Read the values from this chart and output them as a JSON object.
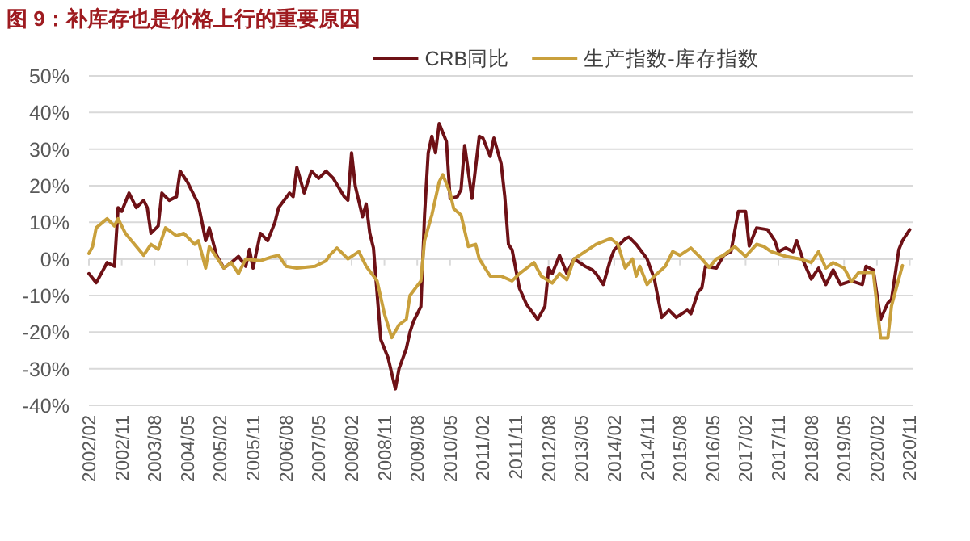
{
  "chart_data": {
    "type": "line",
    "title": "图 9：补库存也是价格上行的重要原因",
    "ylim": [
      -40,
      50
    ],
    "yticks": [
      {
        "value": -40,
        "label": "-40%"
      },
      {
        "value": -30,
        "label": "-30%"
      },
      {
        "value": -20,
        "label": "-20%"
      },
      {
        "value": -10,
        "label": "-10%"
      },
      {
        "value": 0,
        "label": "0%"
      },
      {
        "value": 10,
        "label": "10%"
      },
      {
        "value": 20,
        "label": "20%"
      },
      {
        "value": 30,
        "label": "30%"
      },
      {
        "value": 40,
        "label": "40%"
      },
      {
        "value": 50,
        "label": "50%"
      }
    ],
    "xlim": [
      "2002-02",
      "2020-12"
    ],
    "xticks": [
      {
        "value": "2002-02",
        "label": "2002/02"
      },
      {
        "value": "2002-11",
        "label": "2002/11"
      },
      {
        "value": "2003-08",
        "label": "2003/08"
      },
      {
        "value": "2004-05",
        "label": "2004/05"
      },
      {
        "value": "2005-02",
        "label": "2005/02"
      },
      {
        "value": "2005-11",
        "label": "2005/11"
      },
      {
        "value": "2006-08",
        "label": "2006/08"
      },
      {
        "value": "2007-05",
        "label": "2007/05"
      },
      {
        "value": "2008-02",
        "label": "2008/02"
      },
      {
        "value": "2008-11",
        "label": "2008/11"
      },
      {
        "value": "2009-08",
        "label": "2009/08"
      },
      {
        "value": "2010-05",
        "label": "2010/05"
      },
      {
        "value": "2011-02",
        "label": "2011/02"
      },
      {
        "value": "2011-11",
        "label": "2011/11"
      },
      {
        "value": "2012-08",
        "label": "2012/08"
      },
      {
        "value": "2013-05",
        "label": "2013/05"
      },
      {
        "value": "2014-02",
        "label": "2014/02"
      },
      {
        "value": "2014-11",
        "label": "2014/11"
      },
      {
        "value": "2015-08",
        "label": "2015/08"
      },
      {
        "value": "2016-05",
        "label": "2016/05"
      },
      {
        "value": "2017-02",
        "label": "2017/02"
      },
      {
        "value": "2017-11",
        "label": "2017/11"
      },
      {
        "value": "2018-08",
        "label": "2018/08"
      },
      {
        "value": "2019-05",
        "label": "2019/05"
      },
      {
        "value": "2020-02",
        "label": "2020/02"
      },
      {
        "value": "2020-11",
        "label": "2020/11"
      }
    ],
    "grid": "y",
    "legend": "top",
    "marker": "none",
    "line_style": "solid",
    "series": [
      {
        "name": "CRB同比",
        "color": "#6e1116",
        "x": [
          "2002-02",
          "2002-04",
          "2002-07",
          "2002-09",
          "2002-10",
          "2002-11",
          "2003-01",
          "2003-03",
          "2003-05",
          "2003-06",
          "2003-07",
          "2003-09",
          "2003-10",
          "2003-12",
          "2004-02",
          "2004-03",
          "2004-05",
          "2004-07",
          "2004-08",
          "2004-10",
          "2004-11",
          "2005-01",
          "2005-03",
          "2005-05",
          "2005-07",
          "2005-09",
          "2005-10",
          "2005-11",
          "2006-01",
          "2006-03",
          "2006-05",
          "2006-06",
          "2006-09",
          "2006-10",
          "2006-11",
          "2007-01",
          "2007-03",
          "2007-05",
          "2007-07",
          "2007-09",
          "2007-12",
          "2008-01",
          "2008-02",
          "2008-03",
          "2008-05",
          "2008-06",
          "2008-07",
          "2008-08",
          "2008-10",
          "2008-12",
          "2009-02",
          "2009-03",
          "2009-05",
          "2009-06",
          "2009-07",
          "2009-09",
          "2009-10",
          "2009-11",
          "2009-12",
          "2010-01",
          "2010-02",
          "2010-04",
          "2010-05",
          "2010-07",
          "2010-08",
          "2010-09",
          "2010-11",
          "2011-01",
          "2011-02",
          "2011-04",
          "2011-05",
          "2011-07",
          "2011-08",
          "2011-09",
          "2011-10",
          "2011-12",
          "2012-02",
          "2012-05",
          "2012-07",
          "2012-08",
          "2012-09",
          "2012-11",
          "2013-01",
          "2013-03",
          "2013-06",
          "2013-08",
          "2013-09",
          "2013-11",
          "2014-01",
          "2014-02",
          "2014-05",
          "2014-06",
          "2014-08",
          "2014-11",
          "2015-01",
          "2015-03",
          "2015-05",
          "2015-07",
          "2015-10",
          "2015-11",
          "2016-01",
          "2016-02",
          "2016-03",
          "2016-06",
          "2016-08",
          "2016-10",
          "2016-12",
          "2017-02",
          "2017-03",
          "2017-05",
          "2017-08",
          "2017-10",
          "2017-11",
          "2018-01",
          "2018-03",
          "2018-04",
          "2018-06",
          "2018-08",
          "2018-10",
          "2018-12",
          "2019-02",
          "2019-04",
          "2019-07",
          "2019-10",
          "2019-11",
          "2020-01",
          "2020-03",
          "2020-05",
          "2020-06",
          "2020-08",
          "2020-09",
          "2020-11"
        ],
        "values": [
          -4,
          -6.5,
          -1,
          -2,
          14,
          13,
          18,
          14,
          16,
          14,
          7,
          9,
          18,
          16,
          17,
          24,
          21,
          17,
          15,
          5,
          8.5,
          1,
          -2.5,
          -1,
          0.7,
          -2,
          2.6,
          -2.5,
          7,
          5,
          10,
          14,
          18,
          17,
          25,
          18,
          24,
          22,
          24,
          22,
          17,
          16,
          29,
          20,
          11.5,
          15,
          7,
          3,
          -22,
          -27,
          -35.5,
          -30,
          -24.5,
          -20,
          -17,
          -13,
          12,
          29,
          33.5,
          29,
          37,
          32,
          16.5,
          17,
          19,
          31,
          16.5,
          33.5,
          33,
          28,
          33,
          26,
          17,
          4,
          2.5,
          -8,
          -12.5,
          -16.5,
          -13,
          -2.5,
          -4,
          1,
          -4,
          0,
          -2,
          -3,
          -4,
          -7,
          0,
          2.5,
          5.5,
          6,
          4,
          0,
          -5.5,
          -16,
          -14,
          -16,
          -14,
          -15,
          -9,
          -8,
          -2,
          -2.5,
          1,
          2,
          13,
          13,
          3.5,
          8.5,
          8,
          5,
          2,
          3,
          2,
          5,
          -1,
          -5.5,
          -2.5,
          -7,
          -3,
          -7,
          -6,
          -7,
          -2,
          -3,
          -16.5,
          -12,
          -11,
          2.5,
          5,
          8
        ]
      },
      {
        "name": "生产指数-库存指数",
        "color": "#c9a03c",
        "x": [
          "2002-02",
          "2002-03",
          "2002-04",
          "2002-07",
          "2002-09",
          "2002-10",
          "2002-12",
          "2003-03",
          "2003-05",
          "2003-07",
          "2003-09",
          "2003-11",
          "2004-02",
          "2004-04",
          "2004-07",
          "2004-08",
          "2004-10",
          "2004-11",
          "2005-03",
          "2005-05",
          "2005-07",
          "2005-09",
          "2006-01",
          "2006-04",
          "2006-06",
          "2006-08",
          "2006-11",
          "2007-04",
          "2007-07",
          "2007-08",
          "2007-10",
          "2008-01",
          "2008-04",
          "2008-06",
          "2008-09",
          "2008-11",
          "2009-01",
          "2009-03",
          "2009-05",
          "2009-06",
          "2009-09",
          "2009-10",
          "2009-12",
          "2010-02",
          "2010-03",
          "2010-05",
          "2010-06",
          "2010-08",
          "2010-10",
          "2010-12",
          "2011-01",
          "2011-04",
          "2011-07",
          "2011-10",
          "2011-12",
          "2012-02",
          "2012-04",
          "2012-06",
          "2012-09",
          "2012-11",
          "2013-01",
          "2013-03",
          "2013-06",
          "2013-09",
          "2014-01",
          "2014-03",
          "2014-05",
          "2014-07",
          "2014-08",
          "2014-09",
          "2014-11",
          "2015-01",
          "2015-04",
          "2015-06",
          "2015-08",
          "2015-11",
          "2016-02",
          "2016-04",
          "2016-06",
          "2016-08",
          "2016-11",
          "2017-02",
          "2017-05",
          "2017-07",
          "2017-09",
          "2018-01",
          "2018-05",
          "2018-08",
          "2018-10",
          "2018-12",
          "2019-02",
          "2019-05",
          "2019-07",
          "2019-09",
          "2020-01",
          "2020-03",
          "2020-05",
          "2020-06",
          "2020-08",
          "2020-09"
        ],
        "values": [
          1.5,
          3.4,
          8.5,
          11,
          9,
          11,
          7,
          3.4,
          1,
          4,
          2.6,
          8.5,
          6.3,
          7,
          4,
          5,
          -2.5,
          3.4,
          -2.5,
          -1,
          -4,
          0,
          -0.5,
          0.5,
          1,
          -2,
          -2.5,
          -2,
          -0.5,
          1,
          3,
          0,
          2,
          -2,
          -6,
          -15,
          -21.5,
          -18,
          -16.5,
          -10,
          -6,
          5,
          12,
          21,
          23,
          18,
          13.7,
          12,
          3.4,
          4,
          0,
          -4.7,
          -4.7,
          -6,
          -4,
          -2.5,
          -1,
          -4.7,
          -6.6,
          -4,
          -5.7,
          0,
          2,
          4,
          5.6,
          4,
          -2.5,
          0,
          -4.7,
          -2,
          -7,
          -4.7,
          -2,
          2,
          1,
          3,
          0,
          -2.3,
          0,
          1,
          3.4,
          0.7,
          4,
          3.4,
          2,
          0.7,
          0,
          -1,
          2,
          -2.5,
          -1,
          -2.5,
          -6.2,
          -3.7,
          -3.7,
          -21.6,
          -21.6,
          -12.8,
          -5.4,
          -1.8
        ]
      }
    ]
  }
}
